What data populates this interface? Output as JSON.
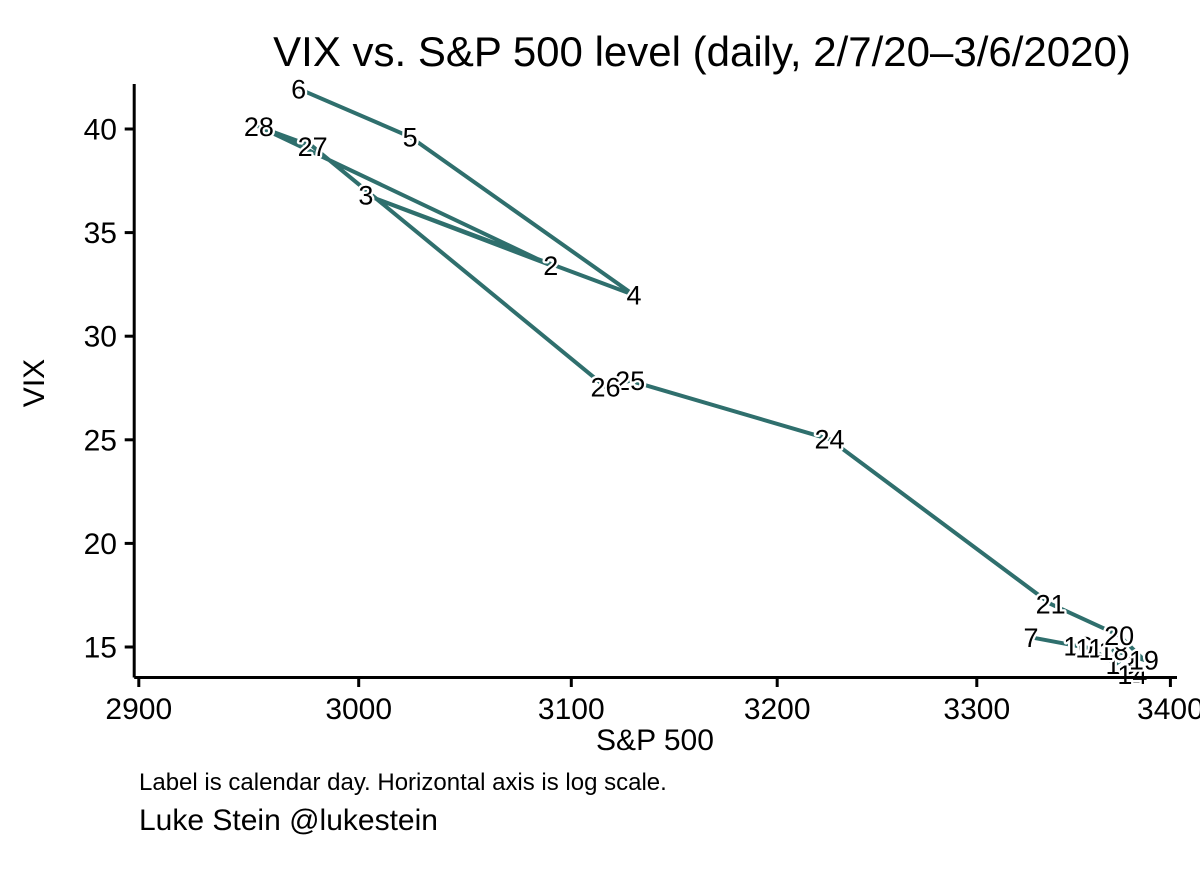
{
  "title": "VIX vs. S&P 500 level (daily, 2/7/20–3/6/2020)",
  "axes": {
    "x": {
      "label": "S&P 500",
      "scale": "log",
      "ticks": [
        2900,
        3000,
        3100,
        3200,
        3300,
        3400
      ],
      "range": [
        2900,
        3400
      ]
    },
    "y": {
      "label": "VIX",
      "scale": "linear",
      "ticks": [
        15,
        20,
        25,
        30,
        35,
        40
      ],
      "range": [
        13.5,
        42
      ]
    }
  },
  "notes": {
    "footnote": "Label is calendar day. Horizontal axis is log scale.",
    "credit": "Luke Stein @lukestein"
  },
  "colors": {
    "series": "#2f6f6d",
    "axis": "#000000",
    "background": "#ffffff"
  },
  "chart_data": {
    "type": "line",
    "subtype": "connected-scatter-with-day-labels",
    "title": "VIX vs. S&P 500 level (daily, 2/7/20–3/6/2020)",
    "xlabel": "S&P 500",
    "ylabel": "VIX",
    "x_scale": "log",
    "xlim": [
      2900,
      3400
    ],
    "ylim": [
      13.5,
      42
    ],
    "grid": false,
    "legend": false,
    "label_meaning": "calendar day of month (Feb 7 – Mar 6, 2020)",
    "points": [
      {
        "label": "7",
        "x": 3327.71,
        "y": 15.47
      },
      {
        "label": "10",
        "x": 3352.09,
        "y": 15.04
      },
      {
        "label": "11",
        "x": 3357.75,
        "y": 14.95
      },
      {
        "label": "12",
        "x": 3379.45,
        "y": 13.74
      },
      {
        "label": "13",
        "x": 3373.94,
        "y": 14.15
      },
      {
        "label": "14",
        "x": 3380.16,
        "y": 13.68
      },
      {
        "label": "18",
        "x": 3370.29,
        "y": 14.83
      },
      {
        "label": "19",
        "x": 3386.15,
        "y": 14.38
      },
      {
        "label": "20",
        "x": 3373.23,
        "y": 15.56
      },
      {
        "label": "21",
        "x": 3337.75,
        "y": 17.08
      },
      {
        "label": "24",
        "x": 3225.89,
        "y": 25.03
      },
      {
        "label": "25",
        "x": 3128.21,
        "y": 27.85
      },
      {
        "label": "26",
        "x": 3116.39,
        "y": 27.56
      },
      {
        "label": "27",
        "x": 2978.76,
        "y": 39.16
      },
      {
        "label": "28",
        "x": 2954.22,
        "y": 40.11
      },
      {
        "label": "2",
        "x": 3090.23,
        "y": 33.42
      },
      {
        "label": "3",
        "x": 3003.37,
        "y": 36.82
      },
      {
        "label": "4",
        "x": 3130.12,
        "y": 31.99
      },
      {
        "label": "5",
        "x": 3023.94,
        "y": 39.62
      },
      {
        "label": "6",
        "x": 2972.37,
        "y": 41.94
      }
    ]
  }
}
